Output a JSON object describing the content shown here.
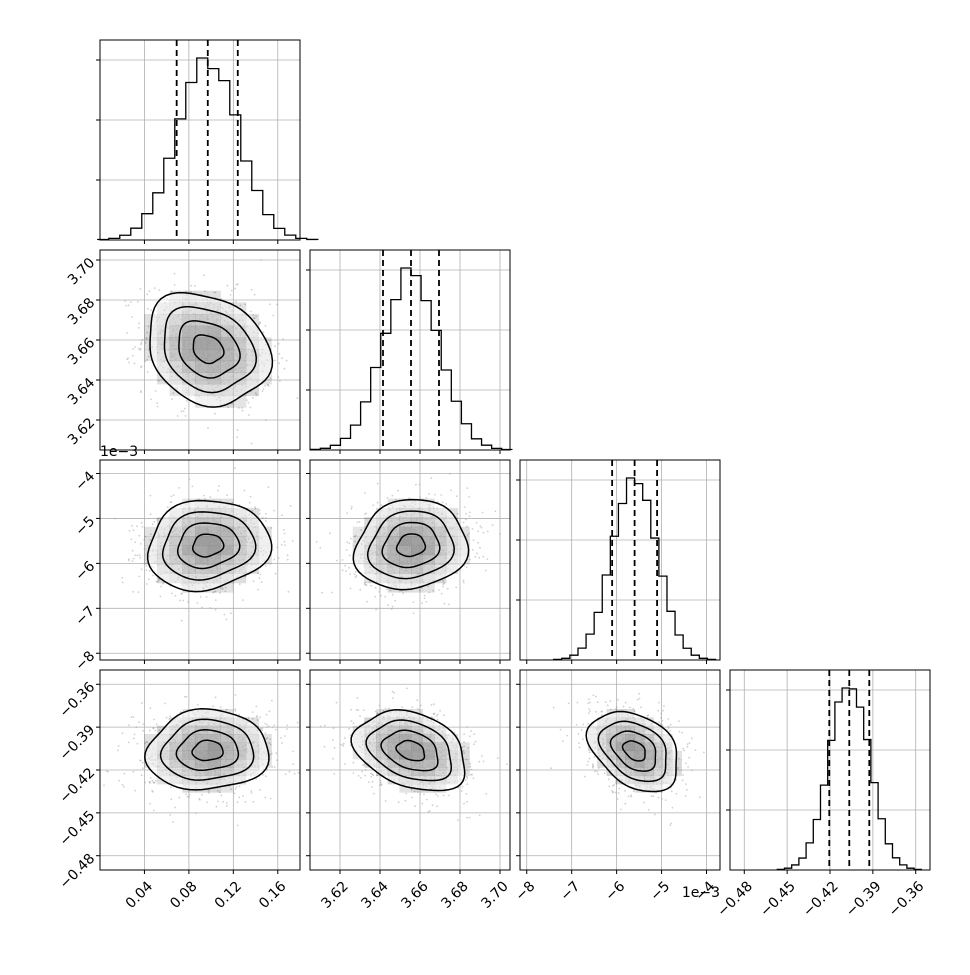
{
  "chart_data": {
    "type": "corner",
    "title": "",
    "parameters": [
      {
        "name": "",
        "range": [
          0.0,
          0.18
        ],
        "ticks": [
          0.04,
          0.08,
          0.12,
          0.16
        ],
        "tick_labels": [
          "0.04",
          "0.08",
          "0.12",
          "0.16"
        ],
        "offset_label": "",
        "median": 0.097,
        "q16": 0.069,
        "q84": 0.124,
        "sigma": 0.0275
      },
      {
        "name": "",
        "range": [
          3.605,
          3.705
        ],
        "ticks": [
          3.62,
          3.64,
          3.66,
          3.68,
          3.7
        ],
        "tick_labels": [
          "3.62",
          "3.64",
          "3.66",
          "3.68",
          "3.70"
        ],
        "offset_label": "",
        "median": 3.6555,
        "q16": 3.6415,
        "q84": 3.6695,
        "sigma": 0.014
      },
      {
        "name": "",
        "range": [
          -8.15,
          -3.7
        ],
        "ticks": [
          -8,
          -7,
          -6,
          -5,
          -4
        ],
        "tick_labels": [
          "−8",
          "−7",
          "−6",
          "−5",
          "−4"
        ],
        "offset_label": "1e−3",
        "median": -5.6,
        "q16": -6.1,
        "q84": -5.1,
        "sigma": 0.5
      },
      {
        "name": "",
        "range": [
          -0.49,
          -0.35
        ],
        "ticks": [
          -0.48,
          -0.45,
          -0.42,
          -0.39,
          -0.36
        ],
        "tick_labels": [
          "−0.48",
          "−0.45",
          "−0.42",
          "−0.39",
          "−0.36"
        ],
        "offset_label": "",
        "median": -0.4065,
        "q16": -0.4205,
        "q84": -0.3925,
        "sigma": 0.014
      }
    ],
    "correlations": [
      {
        "pair": [
          1,
          0
        ],
        "rho": -0.2
      },
      {
        "pair": [
          2,
          0
        ],
        "rho": 0.1
      },
      {
        "pair": [
          2,
          1
        ],
        "rho": 0.1
      },
      {
        "pair": [
          3,
          0
        ],
        "rho": 0.05
      },
      {
        "pair": [
          3,
          1
        ],
        "rho": -0.3
      },
      {
        "pair": [
          3,
          2
        ],
        "rho": -0.35
      }
    ],
    "contour_levels_sigma": [
      0.5,
      1.0,
      1.5,
      2.0
    ],
    "quantiles": [
      0.16,
      0.5,
      0.84
    ],
    "histogram_bins": 20,
    "grid": true,
    "scatter_color": "#aaaaaa",
    "line_color": "#000000",
    "density_color": "#000000"
  }
}
